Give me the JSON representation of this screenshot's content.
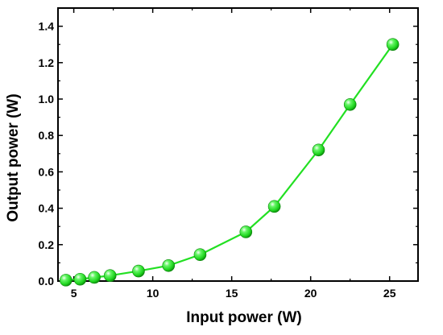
{
  "chart_data": {
    "type": "line",
    "title": "",
    "xlabel": "Input power (W)",
    "ylabel": "Output power (W)",
    "xlim": [
      4.0,
      26.8
    ],
    "ylim": [
      0,
      1.5
    ],
    "xticks": [
      5,
      10,
      15,
      20,
      25
    ],
    "xtick_labels": [
      "5",
      "10",
      "15",
      "20",
      "25"
    ],
    "yticks": [
      0.0,
      0.2,
      0.4,
      0.6,
      0.8,
      1.0,
      1.2,
      1.4
    ],
    "ytick_labels": [
      "0.0",
      "0.2",
      "0.4",
      "0.6",
      "0.8",
      "1.0",
      "1.2",
      "1.4"
    ],
    "grid": false,
    "legend": "none",
    "series": [
      {
        "x": [
          4.5,
          5.4,
          6.3,
          7.3,
          9.1,
          11.0,
          13.0,
          15.9,
          17.7,
          20.5,
          22.5,
          25.2
        ],
        "y": [
          0.005,
          0.01,
          0.02,
          0.03,
          0.055,
          0.085,
          0.145,
          0.27,
          0.41,
          0.72,
          0.97,
          1.3
        ],
        "color": "#22e022",
        "marker": "sphere"
      }
    ]
  }
}
